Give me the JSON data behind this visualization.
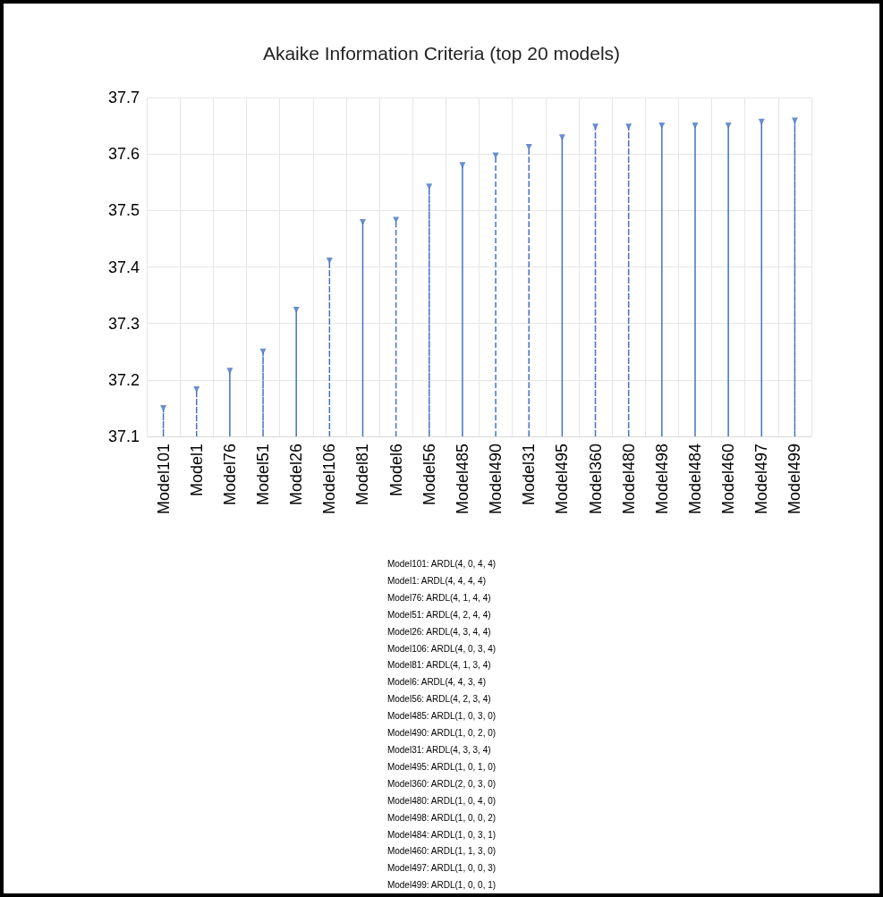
{
  "chart_data": {
    "type": "lollipop",
    "title": "Akaike Information Criteria (top 20 models)",
    "categories": [
      "Model101",
      "Model1",
      "Model76",
      "Model51",
      "Model26",
      "Model106",
      "Model81",
      "Model6",
      "Model56",
      "Model485",
      "Model490",
      "Model31",
      "Model495",
      "Model360",
      "Model480",
      "Model498",
      "Model484",
      "Model460",
      "Model497",
      "Model499"
    ],
    "values": [
      37.15,
      37.183,
      37.216,
      37.25,
      37.324,
      37.411,
      37.479,
      37.483,
      37.542,
      37.58,
      37.597,
      37.612,
      37.629,
      37.648,
      37.648,
      37.65,
      37.65,
      37.65,
      37.657,
      37.659
    ],
    "color": "#4472c4",
    "marker": "triangle",
    "line_style": "dashed",
    "grid": true,
    "ylim": [
      37.1,
      37.7
    ],
    "yticks": [
      37.1,
      37.2,
      37.3,
      37.4,
      37.5,
      37.6,
      37.7
    ],
    "annotations": [
      "Model101: ARDL(4, 0, 4, 4)",
      "Model1: ARDL(4, 4, 4, 4)",
      "Model76: ARDL(4, 1, 4, 4)",
      "Model51: ARDL(4, 2, 4, 4)",
      "Model26: ARDL(4, 3, 4, 4)",
      "Model106: ARDL(4, 0, 3, 4)",
      "Model81: ARDL(4, 1, 3, 4)",
      "Model6: ARDL(4, 4, 3, 4)",
      "Model56: ARDL(4, 2, 3, 4)",
      "Model485: ARDL(1, 0, 3, 0)",
      "Model490: ARDL(1, 0, 2, 0)",
      "Model31: ARDL(4, 3, 3, 4)",
      "Model495: ARDL(1, 0, 1, 0)",
      "Model360: ARDL(2, 0, 3, 0)",
      "Model480: ARDL(1, 0, 4, 0)",
      "Model498: ARDL(1, 0, 0, 2)",
      "Model484: ARDL(1, 0, 3, 1)",
      "Model460: ARDL(1, 1, 3, 0)",
      "Model497: ARDL(1, 0, 0, 3)",
      "Model499: ARDL(1, 0, 0, 1)"
    ]
  }
}
